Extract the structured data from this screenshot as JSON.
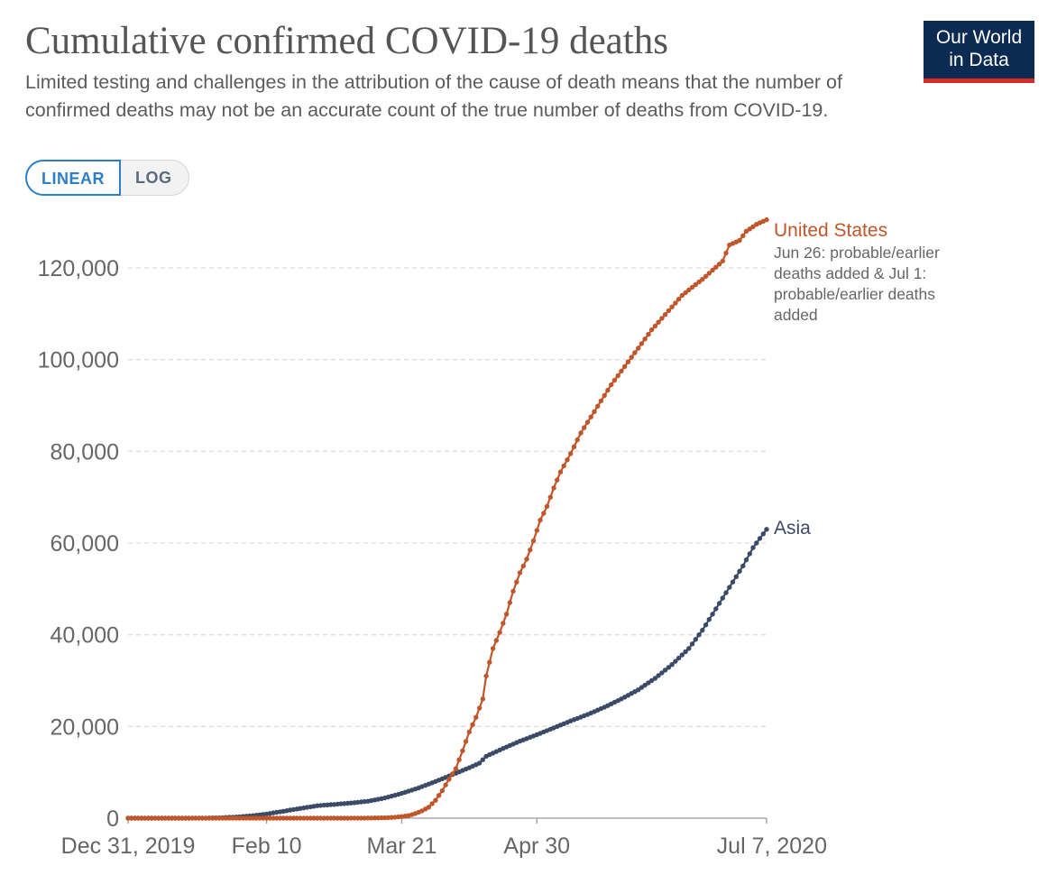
{
  "header": {
    "title": "Cumulative confirmed COVID-19 deaths",
    "subtitle": "Limited testing and challenges in the attribution of the cause of death means that the number of confirmed deaths may not be an accurate count of the true number of deaths from COVID-19.",
    "logo_line1": "Our World",
    "logo_line2": "in Data"
  },
  "controls": {
    "linear_label": "LINEAR",
    "log_label": "LOG",
    "selected": "LINEAR"
  },
  "colors": {
    "united_states": "#c0562a",
    "asia": "#3a4a67",
    "gridline": "#dddddd",
    "axis_text": "#666666",
    "logo_bg": "#0c2b52",
    "logo_accent": "#d62d27",
    "toggle_accent": "#2d7ec8"
  },
  "chart_data": {
    "type": "line",
    "title": "Cumulative confirmed COVID-19 deaths",
    "xlabel": "",
    "ylabel": "",
    "x_range": [
      "2019-12-31",
      "2020-07-07"
    ],
    "ylim": [
      0,
      130000
    ],
    "x_ticks": [
      {
        "date": "2019-12-31",
        "label": "Dec 31, 2019"
      },
      {
        "date": "2020-02-10",
        "label": "Feb 10"
      },
      {
        "date": "2020-03-21",
        "label": "Mar 21"
      },
      {
        "date": "2020-04-30",
        "label": "Apr 30"
      },
      {
        "date": "2020-07-07",
        "label": "Jul 7, 2020"
      }
    ],
    "y_ticks": [
      {
        "value": 0,
        "label": "0"
      },
      {
        "value": 20000,
        "label": "20,000"
      },
      {
        "value": 40000,
        "label": "40,000"
      },
      {
        "value": 60000,
        "label": "60,000"
      },
      {
        "value": 80000,
        "label": "80,000"
      },
      {
        "value": 100000,
        "label": "100,000"
      },
      {
        "value": 120000,
        "label": "120,000"
      }
    ],
    "grid": "horizontal dashed",
    "legend": "inline labels at line ends (right)",
    "series": [
      {
        "name": "United States",
        "annotation": "Jun 26: probable/earlier deaths added & Jul 1: probable/earlier deaths added",
        "color": "#c0562a",
        "points": [
          [
            "2019-12-31",
            0
          ],
          [
            "2020-01-15",
            0
          ],
          [
            "2020-02-01",
            0
          ],
          [
            "2020-02-15",
            0
          ],
          [
            "2020-03-01",
            1
          ],
          [
            "2020-03-06",
            11
          ],
          [
            "2020-03-11",
            32
          ],
          [
            "2020-03-16",
            85
          ],
          [
            "2020-03-19",
            200
          ],
          [
            "2020-03-21",
            360
          ],
          [
            "2020-03-23",
            550
          ],
          [
            "2020-03-25",
            1000
          ],
          [
            "2020-03-27",
            1600
          ],
          [
            "2020-03-29",
            2400
          ],
          [
            "2020-03-31",
            3900
          ],
          [
            "2020-04-02",
            6000
          ],
          [
            "2020-04-04",
            8500
          ],
          [
            "2020-04-06",
            10800
          ],
          [
            "2020-04-08",
            14700
          ],
          [
            "2020-04-10",
            18800
          ],
          [
            "2020-04-12",
            22000
          ],
          [
            "2020-04-14",
            26000
          ],
          [
            "2020-04-15",
            31000
          ],
          [
            "2020-04-17",
            37000
          ],
          [
            "2020-04-19",
            40500
          ],
          [
            "2020-04-21",
            44500
          ],
          [
            "2020-04-23",
            49500
          ],
          [
            "2020-04-25",
            53500
          ],
          [
            "2020-04-27",
            56500
          ],
          [
            "2020-04-29",
            60500
          ],
          [
            "2020-05-01",
            65000
          ],
          [
            "2020-05-03",
            68000
          ],
          [
            "2020-05-05",
            72000
          ],
          [
            "2020-05-07",
            75500
          ],
          [
            "2020-05-10",
            79500
          ],
          [
            "2020-05-13",
            84000
          ],
          [
            "2020-05-16",
            87500
          ],
          [
            "2020-05-19",
            91000
          ],
          [
            "2020-05-22",
            94500
          ],
          [
            "2020-05-25",
            97500
          ],
          [
            "2020-05-28",
            100500
          ],
          [
            "2020-05-31",
            103500
          ],
          [
            "2020-06-03",
            106500
          ],
          [
            "2020-06-06",
            109000
          ],
          [
            "2020-06-09",
            111500
          ],
          [
            "2020-06-12",
            114000
          ],
          [
            "2020-06-15",
            115800
          ],
          [
            "2020-06-18",
            117500
          ],
          [
            "2020-06-21",
            119500
          ],
          [
            "2020-06-24",
            121500
          ],
          [
            "2020-06-26",
            125000
          ],
          [
            "2020-06-29",
            126000
          ],
          [
            "2020-07-01",
            128000
          ],
          [
            "2020-07-04",
            129500
          ],
          [
            "2020-07-07",
            130500
          ]
        ]
      },
      {
        "name": "Asia",
        "color": "#3a4a67",
        "points": [
          [
            "2019-12-31",
            0
          ],
          [
            "2020-01-15",
            0
          ],
          [
            "2020-01-23",
            20
          ],
          [
            "2020-01-27",
            80
          ],
          [
            "2020-02-01",
            260
          ],
          [
            "2020-02-06",
            560
          ],
          [
            "2020-02-10",
            910
          ],
          [
            "2020-02-15",
            1520
          ],
          [
            "2020-02-20",
            2130
          ],
          [
            "2020-02-25",
            2720
          ],
          [
            "2020-03-01",
            3000
          ],
          [
            "2020-03-06",
            3300
          ],
          [
            "2020-03-11",
            3700
          ],
          [
            "2020-03-16",
            4400
          ],
          [
            "2020-03-21",
            5400
          ],
          [
            "2020-03-26",
            6600
          ],
          [
            "2020-03-31",
            8000
          ],
          [
            "2020-04-05",
            9500
          ],
          [
            "2020-04-10",
            11000
          ],
          [
            "2020-04-13",
            12000
          ],
          [
            "2020-04-15",
            13500
          ],
          [
            "2020-04-20",
            15200
          ],
          [
            "2020-04-25",
            16800
          ],
          [
            "2020-04-30",
            18200
          ],
          [
            "2020-05-05",
            19700
          ],
          [
            "2020-05-10",
            21200
          ],
          [
            "2020-05-15",
            22600
          ],
          [
            "2020-05-20",
            24200
          ],
          [
            "2020-05-25",
            26000
          ],
          [
            "2020-05-30",
            28000
          ],
          [
            "2020-06-04",
            30500
          ],
          [
            "2020-06-09",
            33500
          ],
          [
            "2020-06-14",
            37000
          ],
          [
            "2020-06-18",
            41000
          ],
          [
            "2020-06-21",
            44500
          ],
          [
            "2020-06-24",
            48000
          ],
          [
            "2020-06-27",
            51500
          ],
          [
            "2020-06-30",
            55000
          ],
          [
            "2020-07-03",
            59000
          ],
          [
            "2020-07-07",
            63000
          ]
        ]
      }
    ]
  }
}
